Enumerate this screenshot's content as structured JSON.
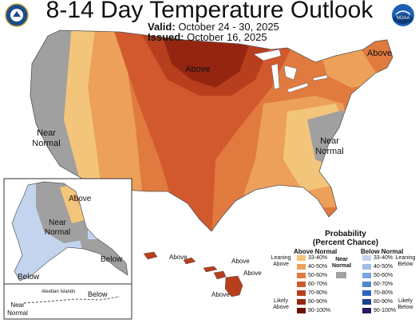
{
  "header": {
    "title": "8-14 Day Temperature Outlook",
    "valid_label": "Valid:",
    "valid_dates": "October 24 - 30, 2025",
    "issued_label": "Issued:",
    "issued_date": "October 16, 2025",
    "left_logo": "doc-seal-icon",
    "right_logo": "noaa-logo-icon",
    "right_logo_text": "NOAA"
  },
  "map_labels": {
    "conus_above_north": "Above",
    "conus_above_northeast": "Above",
    "west_near_normal": [
      "Near",
      "Normal"
    ],
    "east_near_normal": [
      "Near",
      "Normal"
    ],
    "alaska_above": "Above",
    "alaska_near_normal": [
      "Near",
      "Normal"
    ],
    "alaska_below_southeast": "Below",
    "alaska_below_peninsula": "Below",
    "alaska_below_aleutian": "Below",
    "alaska_near_normal_aleutian": [
      "Near",
      "Normal"
    ],
    "aleutian_islands": "Aleutian Islands",
    "hawaii_above_1": "Above",
    "hawaii_above_2": "Above",
    "hawaii_above_3": "Above",
    "hawaii_above_4": "Above"
  },
  "legend": {
    "title": [
      "Probability",
      "(Percent Chance)"
    ],
    "above_header": "Above Normal",
    "below_header": "Below Normal",
    "near_label": [
      "Near",
      "Normal"
    ],
    "leaning_above": [
      "Leaning",
      "Above"
    ],
    "likely_above": [
      "Likely",
      "Above"
    ],
    "leaning_below": [
      "Leaning",
      "Below"
    ],
    "likely_below": [
      "Likely",
      "Below"
    ],
    "near_color": "#a0a0a0",
    "above": [
      {
        "range": "33-40%",
        "color": "#f3c57a"
      },
      {
        "range": "40-50%",
        "color": "#eca05a"
      },
      {
        "range": "50-60%",
        "color": "#e07a3e"
      },
      {
        "range": "60-70%",
        "color": "#d2592d"
      },
      {
        "range": "70-80%",
        "color": "#b83f1d"
      },
      {
        "range": "80-90%",
        "color": "#942611"
      },
      {
        "range": "90-100%",
        "color": "#6b1208"
      }
    ],
    "below": [
      {
        "range": "33-40%",
        "color": "#c4d4ee"
      },
      {
        "range": "40-50%",
        "color": "#9fbde6"
      },
      {
        "range": "50-60%",
        "color": "#79a5de"
      },
      {
        "range": "60-70%",
        "color": "#4e87d2"
      },
      {
        "range": "70-80%",
        "color": "#2f66bd"
      },
      {
        "range": "80-90%",
        "color": "#1d3f8f"
      },
      {
        "range": "90-100%",
        "color": "#2a1a62"
      }
    ]
  }
}
